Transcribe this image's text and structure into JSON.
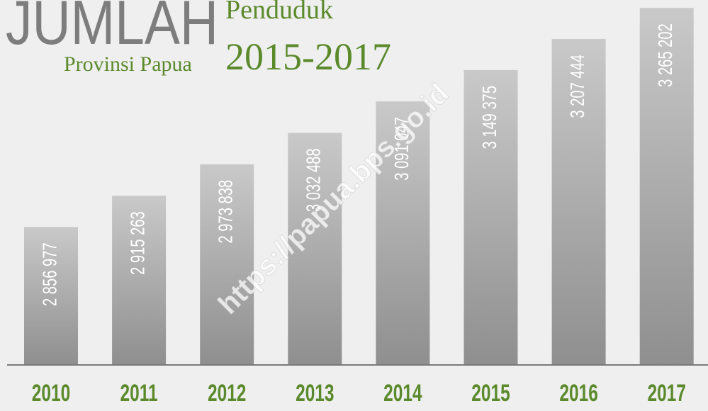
{
  "chart_data": {
    "type": "bar",
    "title": "JUMLAH",
    "subtitle_top": "Penduduk",
    "subtitle_left": "Provinsi Papua",
    "subtitle_years": "2015-2017",
    "watermark": "https://papua.bps.go.id",
    "categories": [
      "2010",
      "2011",
      "2012",
      "2013",
      "2014",
      "2015",
      "2016",
      "2017"
    ],
    "values": [
      2856977,
      2915263,
      2973838,
      3032488,
      3091047,
      3149375,
      3207444,
      3265202
    ],
    "value_labels": [
      "2 856 977",
      "2 915 263",
      "2 973 838",
      "3 032 488",
      "3 091 047",
      "3 149 375",
      "3 207 444",
      "3 265 202"
    ],
    "color": "#b0b0b0",
    "category_color": "#5b8a2c",
    "ylim": [
      2600000,
      3280000
    ]
  }
}
